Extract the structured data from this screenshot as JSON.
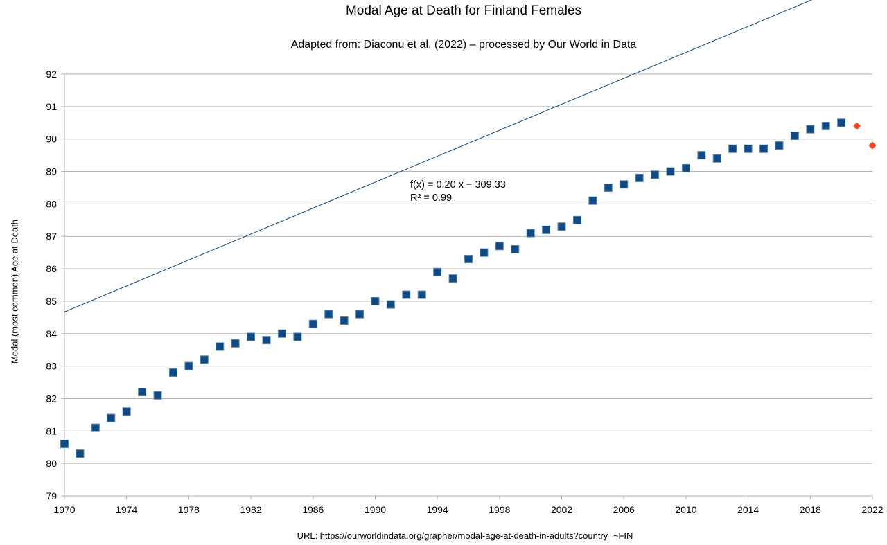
{
  "chart_data": {
    "type": "scatter",
    "title": "Modal Age at Death for Finland Females",
    "subtitle": "Adapted from: Diaconu et al. (2022) – processed by Our World in Data",
    "xlabel": "",
    "ylabel": "Modal (most common) Age at Death",
    "xlim": [
      1970,
      2022
    ],
    "ylim": [
      79,
      92
    ],
    "x_ticks": [
      "1970",
      "1974",
      "1978",
      "1982",
      "1986",
      "1990",
      "1994",
      "1998",
      "2002",
      "2006",
      "2010",
      "2014",
      "2018",
      "2022"
    ],
    "y_ticks": [
      "79",
      "80",
      "81",
      "82",
      "83",
      "84",
      "85",
      "86",
      "87",
      "88",
      "89",
      "90",
      "91",
      "92"
    ],
    "grid": true,
    "series": [
      {
        "marker": "square",
        "color": "#0d4a86",
        "points": [
          [
            1970,
            80.6
          ],
          [
            1971,
            80.3
          ],
          [
            1972,
            81.1
          ],
          [
            1973,
            81.4
          ],
          [
            1974,
            81.6
          ],
          [
            1975,
            82.2
          ],
          [
            1976,
            82.1
          ],
          [
            1977,
            82.8
          ],
          [
            1978,
            83.0
          ],
          [
            1979,
            83.2
          ],
          [
            1980,
            83.6
          ],
          [
            1981,
            83.7
          ],
          [
            1982,
            83.9
          ],
          [
            1983,
            83.8
          ],
          [
            1984,
            84.0
          ],
          [
            1985,
            83.9
          ],
          [
            1986,
            84.3
          ],
          [
            1987,
            84.6
          ],
          [
            1988,
            84.4
          ],
          [
            1989,
            84.6
          ],
          [
            1990,
            85.0
          ],
          [
            1991,
            84.9
          ],
          [
            1992,
            85.2
          ],
          [
            1993,
            85.2
          ],
          [
            1994,
            85.9
          ],
          [
            1995,
            85.7
          ],
          [
            1996,
            86.3
          ],
          [
            1997,
            86.5
          ],
          [
            1998,
            86.7
          ],
          [
            1999,
            86.6
          ],
          [
            2000,
            87.1
          ],
          [
            2001,
            87.2
          ],
          [
            2002,
            87.3
          ],
          [
            2003,
            87.5
          ],
          [
            2004,
            88.1
          ],
          [
            2005,
            88.5
          ],
          [
            2006,
            88.6
          ],
          [
            2007,
            88.8
          ],
          [
            2008,
            88.9
          ],
          [
            2009,
            89.0
          ],
          [
            2010,
            89.1
          ],
          [
            2011,
            89.5
          ],
          [
            2012,
            89.4
          ],
          [
            2013,
            89.7
          ],
          [
            2014,
            89.7
          ],
          [
            2015,
            89.7
          ],
          [
            2016,
            89.8
          ],
          [
            2017,
            90.1
          ],
          [
            2018,
            90.3
          ],
          [
            2019,
            90.4
          ],
          [
            2020,
            90.5
          ]
        ]
      },
      {
        "marker": "diamond",
        "color": "#ff4520",
        "points": [
          [
            2021,
            90.4
          ],
          [
            2022,
            89.8
          ]
        ]
      }
    ],
    "trendline": {
      "color": "#0d4a86",
      "slope": 0.2,
      "intercept": -309.33,
      "x_range": [
        1970,
        2022
      ],
      "equation": "f(x) = 0.20 x − 309.33",
      "r_squared": "R² = 0.99"
    }
  },
  "footer": "URL: https://ourworldindata.org/grapher/modal-age-at-death-in-adults?country=~FIN"
}
